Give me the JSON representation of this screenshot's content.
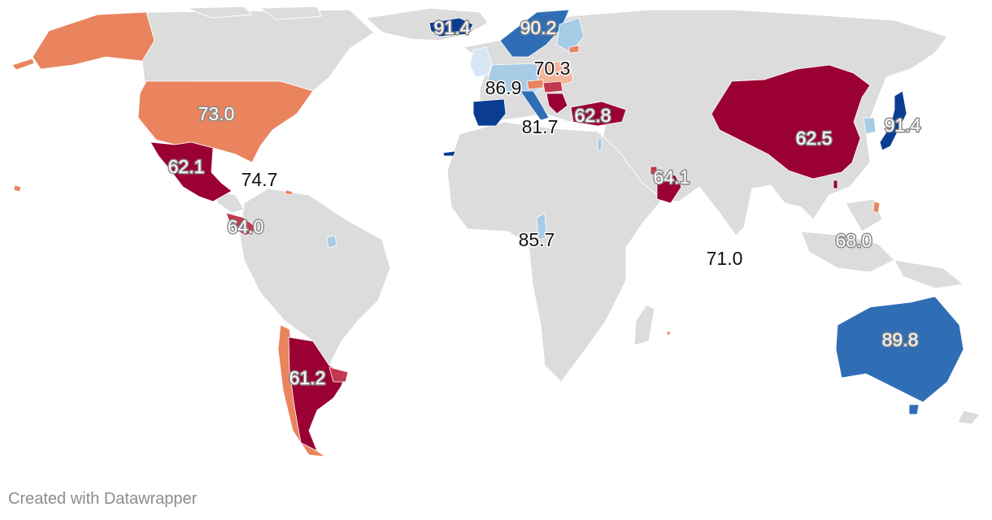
{
  "credit": "Created with Datawrapper",
  "colors": {
    "no_data": "#dcdcdc",
    "dark_red": "#9b0032",
    "mid_red": "#c0394c",
    "salmon": "#e9845e",
    "light_salmon": "#f2b49a",
    "light_blue": "#a8cce6",
    "mid_blue": "#2f6eb5",
    "dark_blue": "#0a3d91"
  },
  "countries": [
    {
      "name": "United States",
      "value": 73.0,
      "color": "salmon",
      "label": "73.0"
    },
    {
      "name": "Mexico",
      "value": 62.1,
      "color": "dark_red",
      "label": "62.1"
    },
    {
      "name": "Caribbean",
      "value": 74.7,
      "color": "salmon",
      "label": "74.7"
    },
    {
      "name": "Central America",
      "value": 64.0,
      "color": "mid_red",
      "label": "64.0"
    },
    {
      "name": "Argentina",
      "value": 61.2,
      "color": "dark_red",
      "label": "61.2"
    },
    {
      "name": "Iceland",
      "value": 91.4,
      "color": "dark_blue",
      "label": "91.4"
    },
    {
      "name": "Scandinavia",
      "value": 90.2,
      "color": "mid_blue",
      "label": "90.2"
    },
    {
      "name": "Central Europe",
      "value": 70.3,
      "color": "light_salmon",
      "label": "70.3"
    },
    {
      "name": "Western Europe",
      "value": 86.9,
      "color": "light_blue",
      "label": "86.9"
    },
    {
      "name": "Southern Europe",
      "value": 81.7,
      "color": "dark_blue",
      "label": "81.7"
    },
    {
      "name": "Turkey",
      "value": 62.8,
      "color": "dark_red",
      "label": "62.8"
    },
    {
      "name": "Gulf States",
      "value": 64.1,
      "color": "mid_red",
      "label": "64.1"
    },
    {
      "name": "Central Africa",
      "value": 85.7,
      "color": "light_blue",
      "label": "85.7"
    },
    {
      "name": "Indian Ocean",
      "value": 71.0,
      "color": "salmon",
      "label": "71.0"
    },
    {
      "name": "China",
      "value": 62.5,
      "color": "dark_red",
      "label": "62.5"
    },
    {
      "name": "Japan",
      "value": 91.4,
      "color": "dark_blue",
      "label": "91.4"
    },
    {
      "name": "Southeast Asia",
      "value": 68.0,
      "color": "salmon",
      "label": "68.0"
    },
    {
      "name": "Australia",
      "value": 89.8,
      "color": "mid_blue",
      "label": "89.8"
    }
  ]
}
